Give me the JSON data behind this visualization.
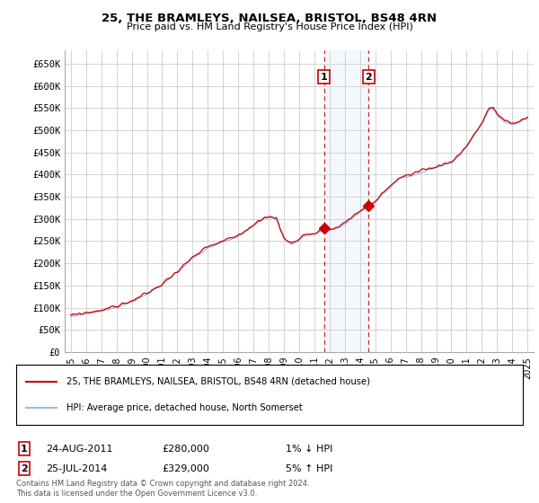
{
  "title": "25, THE BRAMLEYS, NAILSEA, BRISTOL, BS48 4RN",
  "subtitle": "Price paid vs. HM Land Registry's House Price Index (HPI)",
  "legend_line1": "25, THE BRAMLEYS, NAILSEA, BRISTOL, BS48 4RN (detached house)",
  "legend_line2": "HPI: Average price, detached house, North Somerset",
  "transaction1_date": "24-AUG-2011",
  "transaction1_price": "£280,000",
  "transaction1_hpi": "1% ↓ HPI",
  "transaction1_year": 2011.64,
  "transaction1_value": 280000,
  "transaction2_date": "25-JUL-2014",
  "transaction2_price": "£329,000",
  "transaction2_hpi": "5% ↑ HPI",
  "transaction2_year": 2014.56,
  "transaction2_value": 329000,
  "footnote1": "Contains HM Land Registry data © Crown copyright and database right 2024.",
  "footnote2": "This data is licensed under the Open Government Licence v3.0.",
  "ylim": [
    0,
    680000
  ],
  "yticks": [
    0,
    50000,
    100000,
    150000,
    200000,
    250000,
    300000,
    350000,
    400000,
    450000,
    500000,
    550000,
    600000,
    650000
  ],
  "background_color": "#ffffff",
  "grid_color": "#cccccc",
  "line_color_red": "#cc0000",
  "line_color_blue": "#99bbdd",
  "highlight_box_color": "#ddeeff",
  "vline_color": "#cc0000",
  "marker_color": "#cc0000"
}
